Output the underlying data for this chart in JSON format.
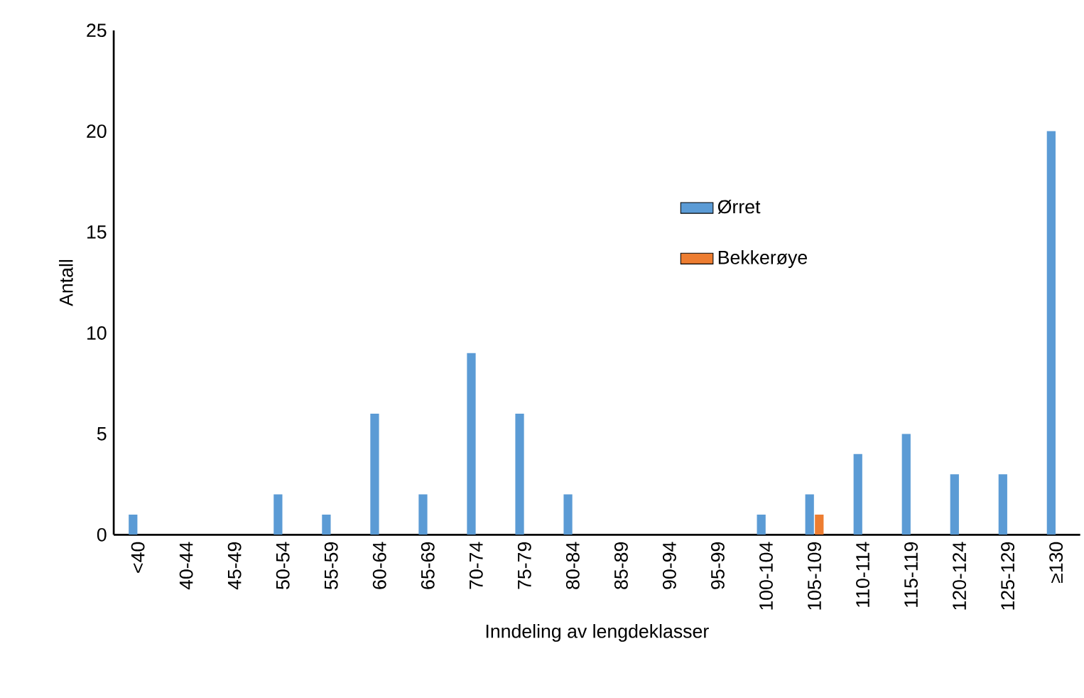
{
  "chart_data": {
    "type": "bar",
    "xlabel": "Inndeling av lengdeklasser",
    "ylabel": "Antall",
    "categories": [
      "<40",
      "40-44",
      "45-49",
      "50-54",
      "55-59",
      "60-64",
      "65-69",
      "70-74",
      "75-79",
      "80-84",
      "85-89",
      "90-94",
      "95-99",
      "100-104",
      "105-109",
      "110-114",
      "115-119",
      "120-124",
      "125-129",
      "≥130"
    ],
    "series": [
      {
        "name": "Ørret",
        "color": "#5b9bd5",
        "values": [
          1,
          0,
          0,
          2,
          1,
          6,
          2,
          9,
          6,
          2,
          0,
          0,
          0,
          1,
          2,
          4,
          5,
          3,
          3,
          20
        ]
      },
      {
        "name": "Bekkerøye",
        "color": "#ed7d31",
        "values": [
          0,
          0,
          0,
          0,
          0,
          0,
          0,
          0,
          0,
          0,
          0,
          0,
          0,
          0,
          1,
          0,
          0,
          0,
          0,
          0
        ]
      }
    ],
    "ylim": [
      0,
      25
    ],
    "yticks": [
      0,
      5,
      10,
      15,
      20,
      25
    ],
    "grid": false,
    "legend": "right"
  }
}
